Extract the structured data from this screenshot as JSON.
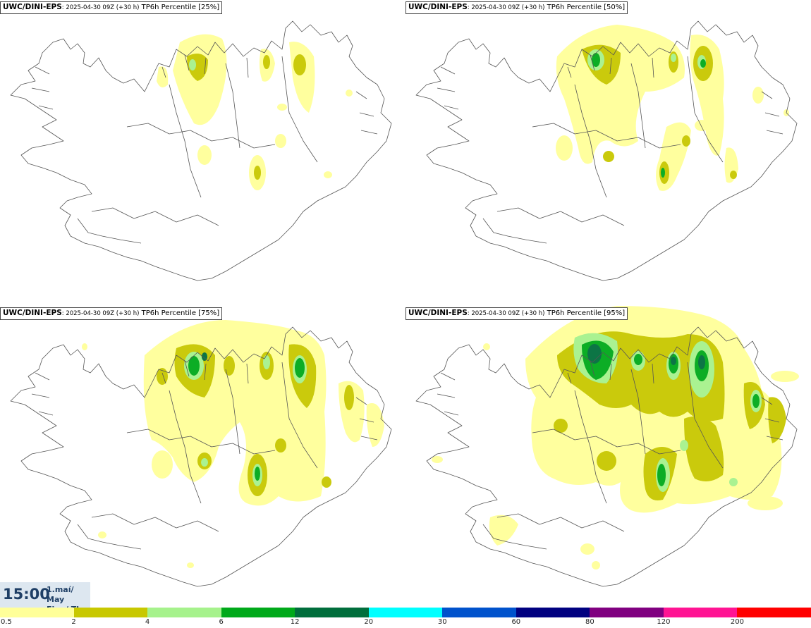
{
  "panels": [
    {
      "model": "UWC/DINI-EPS",
      "run": ": 2025-04-30 09Z (+30 h)",
      "param": " TP6h Percentile [25%]"
    },
    {
      "model": "UWC/DINI-EPS",
      "run": ": 2025-04-30 09Z (+30 h)",
      "param": " TP6h Percentile [50%]"
    },
    {
      "model": "UWC/DINI-EPS",
      "run": ": 2025-04-30 09Z (+30 h)",
      "param": " TP6h Percentile [75%]"
    },
    {
      "model": "UWC/DINI-EPS",
      "run": ": 2025-04-30 09Z (+30 h)",
      "param": " TP6h Percentile [95%]"
    }
  ],
  "time": {
    "clock": "15:00",
    "date_line1": "1.maí/ May",
    "date_line2": "Fim./ Thu"
  },
  "legend": {
    "ticks": [
      "0.5",
      "2",
      "4",
      "6",
      "12",
      "20",
      "30",
      "60",
      "80",
      "120",
      "200"
    ],
    "colors": [
      "#ffff99",
      "#c8c800",
      "#a6f28c",
      "#00a91a",
      "#006e3c",
      "#00ffff",
      "#0052cc",
      "#000080",
      "#800080",
      "#ff1493",
      "#ff0000"
    ]
  },
  "colors": {
    "land_outline": "#555555",
    "precip_low": "#ffff99",
    "precip_2": "#c8c800",
    "precip_4": "#a6f28c",
    "precip_6": "#00a91a",
    "precip_12": "#006e3c",
    "timebox_bg": "#dde7f0",
    "timebox_text": "#1f3f66"
  }
}
